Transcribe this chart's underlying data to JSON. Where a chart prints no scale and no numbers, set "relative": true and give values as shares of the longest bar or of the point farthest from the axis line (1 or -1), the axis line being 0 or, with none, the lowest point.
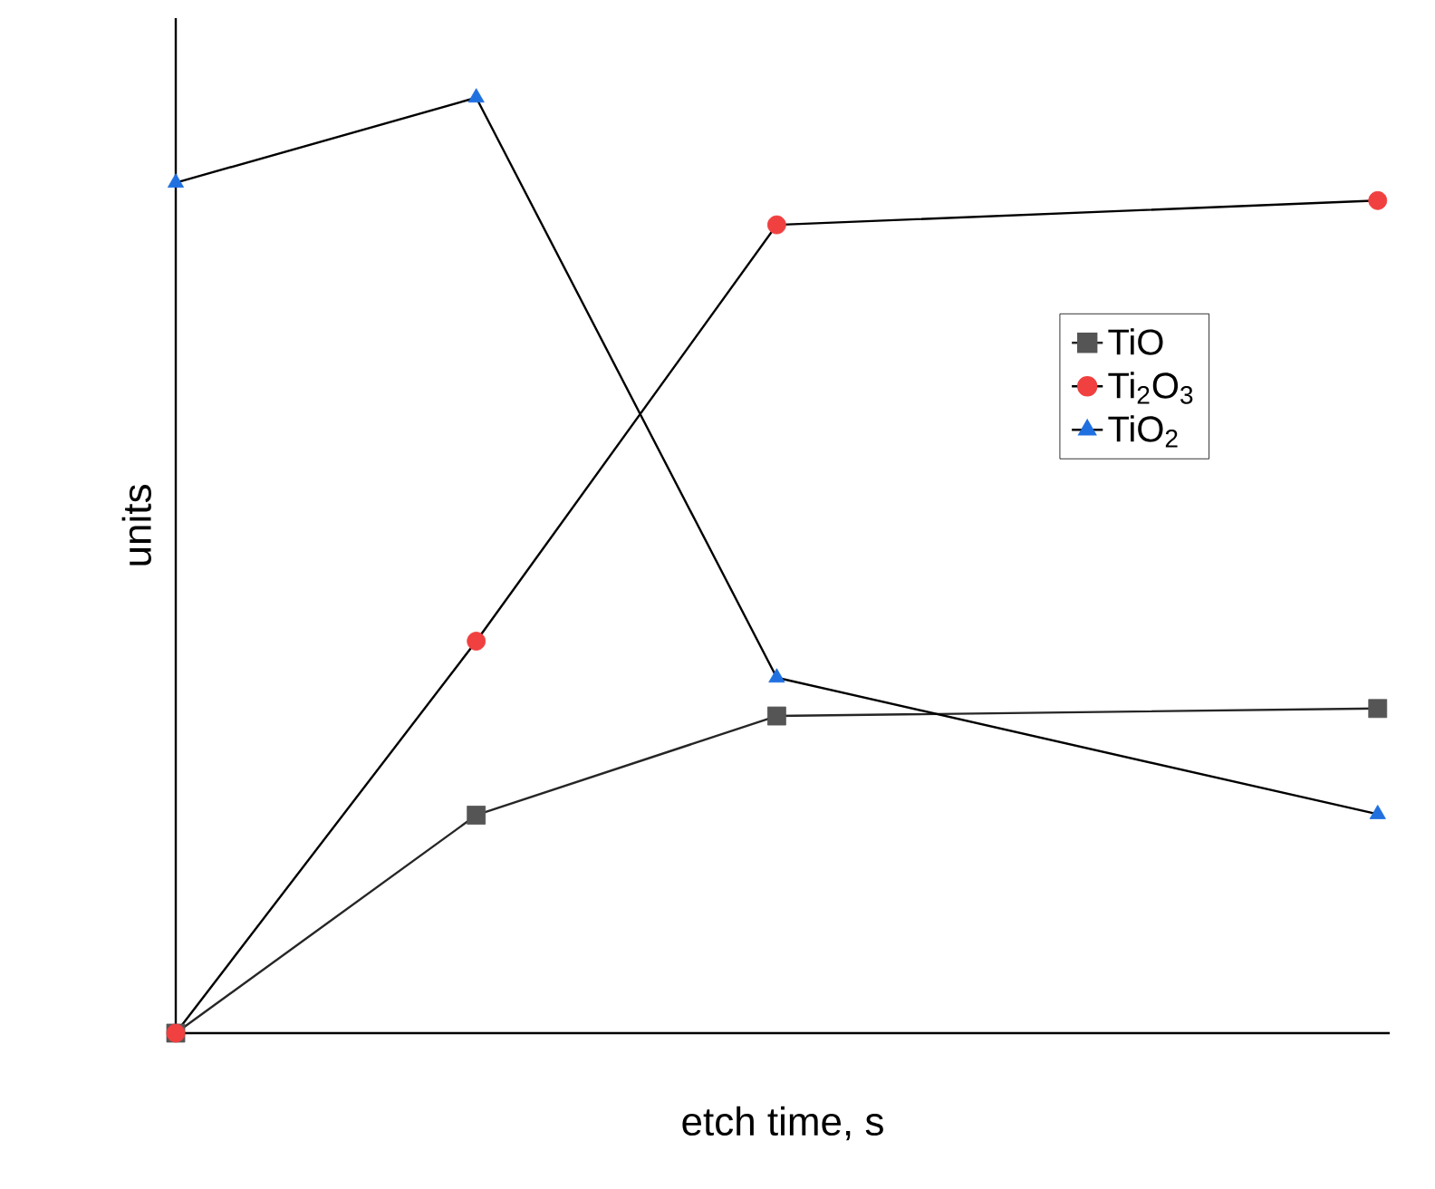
{
  "chart_data": {
    "type": "line",
    "relative": true,
    "xlabel": "etch time, s",
    "ylabel": "units",
    "categories": [
      null,
      null,
      null,
      null,
      null
    ],
    "series": [
      {
        "name": "TiO",
        "color": "#262626",
        "colors": [
          "#555555",
          "#555555",
          "#555555",
          null,
          "#555555"
        ],
        "marker": "square",
        "values": [
          0,
          0.233,
          0.339,
          null,
          0.347
        ]
      },
      {
        "name": "Ti$_{2}$O$_{3}$",
        "color": "#000000",
        "colors": [
          "#f04040",
          "#f04040",
          "#f04040",
          null,
          "#f04040"
        ],
        "marker": "circle",
        "values": [
          0,
          0.419,
          0.864,
          null,
          0.89
        ]
      },
      {
        "name": "TiO$_{2}$",
        "color": "#000000",
        "colors": [
          "#2070e0",
          "#2070e0",
          "#2070e0",
          null,
          "#2070e0"
        ],
        "marker": "triangle",
        "values": [
          0.909,
          1,
          0.38,
          null,
          0.234
        ]
      }
    ],
    "legend": "right",
    "grid": false,
    "line_style": "solid"
  }
}
